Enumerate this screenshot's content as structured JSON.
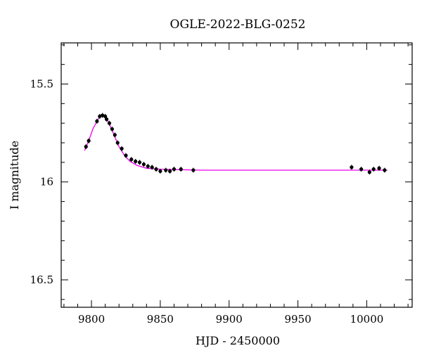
{
  "chart_data": {
    "type": "scatter",
    "title": "OGLE-2022-BLG-0252",
    "xlabel": "HJD - 2450000",
    "ylabel": "I magnitude",
    "xlim": [
      9778,
      10033
    ],
    "ylim": [
      16.64,
      15.29
    ],
    "y_inverted": true,
    "x_ticks_major": [
      9800,
      9850,
      9900,
      9950,
      10000
    ],
    "x_tick_labels": [
      "9800",
      "9850",
      "9900",
      "9950",
      "10000"
    ],
    "y_ticks_major": [
      15.5,
      16,
      16.5
    ],
    "y_tick_labels": [
      "15.5",
      "16",
      "16.5"
    ],
    "grid": false,
    "legend": "none",
    "colors": {
      "data": "#000000",
      "model": "#ee00ee"
    },
    "series": [
      {
        "kind": "points",
        "x": [
          9796,
          9798,
          9804,
          9806,
          9808,
          9810,
          9811,
          9813,
          9815,
          9817,
          9819,
          9822,
          9825,
          9829,
          9832,
          9835,
          9838,
          9841,
          9844,
          9847,
          9850,
          9854,
          9857,
          9860,
          9865,
          9874,
          9989,
          9996,
          10002,
          10005,
          10009,
          10013
        ],
        "y": [
          15.82,
          15.79,
          15.69,
          15.665,
          15.66,
          15.665,
          15.68,
          15.7,
          15.73,
          15.76,
          15.8,
          15.83,
          15.865,
          15.885,
          15.895,
          15.9,
          15.91,
          15.92,
          15.925,
          15.935,
          15.945,
          15.94,
          15.945,
          15.935,
          15.935,
          15.94,
          15.925,
          15.935,
          15.95,
          15.935,
          15.93,
          15.94
        ]
      },
      {
        "kind": "model",
        "x": [
          9795,
          9798,
          9801,
          9804,
          9806,
          9808,
          9810,
          9812,
          9814,
          9817,
          9820,
          9824,
          9828,
          9833,
          9840,
          9850,
          9860,
          9880,
          9950,
          10015
        ],
        "y": [
          15.84,
          15.79,
          15.73,
          15.69,
          15.665,
          15.655,
          15.665,
          15.69,
          15.72,
          15.77,
          15.82,
          15.865,
          15.895,
          15.915,
          15.93,
          15.935,
          15.937,
          15.94,
          15.94,
          15.94
        ]
      }
    ]
  }
}
